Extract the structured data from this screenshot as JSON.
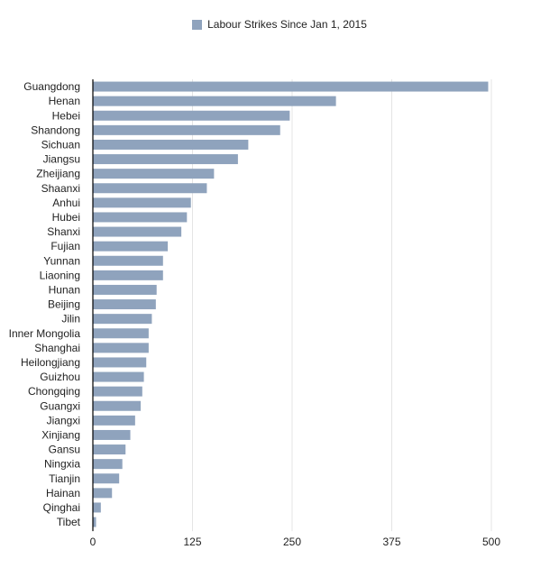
{
  "colors": {
    "bar": "#8fa3bd",
    "grid": "#e4e4e4",
    "axis": "#000000"
  },
  "chart_data": {
    "type": "bar",
    "orientation": "horizontal",
    "legend_position": "top-center",
    "grid": true,
    "series": [
      {
        "name": "Labour Strikes Since Jan 1, 2015"
      }
    ],
    "categories": [
      "Guangdong",
      "Henan",
      "Hebei",
      "Shandong",
      "Sichuan",
      "Jiangsu",
      "Zheijiang",
      "Shaanxi",
      "Anhui",
      "Hubei",
      "Shanxi",
      "Fujian",
      "Yunnan",
      "Liaoning",
      "Hunan",
      "Beijing",
      "Jilin",
      "Inner Mongolia",
      "Shanghai",
      "Heilongjiang",
      "Guizhou",
      "Chongqing",
      "Guangxi",
      "Jiangxi",
      "Xinjiang",
      "Gansu",
      "Ningxia",
      "Tianjin",
      "Hainan",
      "Qinghai",
      "Tibet"
    ],
    "values": [
      496,
      305,
      247,
      235,
      195,
      182,
      152,
      143,
      123,
      118,
      111,
      94,
      88,
      88,
      80,
      79,
      74,
      70,
      70,
      67,
      64,
      62,
      60,
      53,
      47,
      41,
      37,
      33,
      24,
      10,
      4
    ],
    "xlim": [
      0,
      500
    ],
    "xticks": [
      0,
      125,
      250,
      375,
      500
    ]
  }
}
